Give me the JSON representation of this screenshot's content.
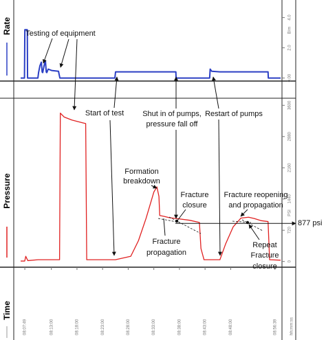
{
  "chart_data": [
    {
      "type": "line",
      "axis_label": "Rate",
      "y_unit": "B/m",
      "color": "#2b3fc4",
      "xlim": [
        7,
        57.75
      ],
      "ylim": [
        -0.2,
        4.8
      ],
      "yticks": [
        {
          "value": 0,
          "label": "0.00"
        },
        {
          "value": 2,
          "label": "2.0"
        },
        {
          "value": 4,
          "label": "4.0"
        }
      ],
      "x": [
        7.0,
        7.75,
        7.82,
        8.3,
        8.35,
        10.37,
        10.5,
        10.77,
        11.04,
        11.2,
        11.31,
        11.58,
        11.84,
        12.0,
        12.11,
        12.38,
        13.05,
        14.39,
        14.66,
        25.4,
        25.53,
        37.3,
        37.35,
        43.9,
        44.0,
        44.3,
        45.9,
        55.3,
        55.35,
        57.75
      ],
      "values": [
        0,
        0,
        3.2,
        3.2,
        0,
        0,
        0.36,
        0.82,
        1.05,
        0.4,
        0.36,
        0.82,
        1.14,
        0.4,
        0.36,
        0.59,
        0.5,
        0.45,
        0,
        0,
        0.41,
        0.41,
        0,
        0,
        0.59,
        0.45,
        0.41,
        0.41,
        0,
        0
      ]
    },
    {
      "type": "line",
      "axis_label": "Pressure",
      "y_unit": "PSI",
      "x_label": "Time",
      "x_unit": "hh:mm:ss",
      "color": "#e02020",
      "xlim": [
        7,
        57.75
      ],
      "ylim": [
        -100,
        3700
      ],
      "yticks": [
        0,
        720,
        1440,
        2160,
        2880,
        3600
      ],
      "xticks": [
        {
          "value": 7.817,
          "label": "08:07:49"
        },
        {
          "value": 13,
          "label": "08:13:00"
        },
        {
          "value": 18,
          "label": "08:18:00"
        },
        {
          "value": 23,
          "label": "08:23:00"
        },
        {
          "value": 28,
          "label": "08:28:00"
        },
        {
          "value": 33,
          "label": "08:33:00"
        },
        {
          "value": 38,
          "label": "08:38:00"
        },
        {
          "value": 43,
          "label": "08:43:00"
        },
        {
          "value": 48,
          "label": "08:48:00"
        },
        {
          "value": 56.65,
          "label": "08:56:39"
        }
      ],
      "x": [
        7.0,
        7.8,
        8.0,
        8.4,
        10.4,
        14.6,
        14.75,
        15.5,
        17,
        19,
        19.7,
        19.9,
        25.5,
        28.5,
        30,
        31.5,
        33,
        33.6,
        34,
        34.15,
        35,
        36,
        37.4,
        40,
        41.9,
        42.2,
        42.8,
        45.9,
        47,
        48.5,
        50,
        51.5,
        52.6,
        54,
        55.3,
        55.6,
        57.75
      ],
      "values": [
        10,
        10,
        120,
        20,
        40,
        40,
        3420,
        3330,
        3260,
        3200,
        3180,
        40,
        40,
        120,
        480,
        1000,
        1600,
        1720,
        1500,
        1060,
        1040,
        1010,
        990,
        950,
        900,
        300,
        40,
        40,
        400,
        800,
        1000,
        1020,
        990,
        940,
        920,
        40,
        30
      ],
      "reference_line": {
        "value": 877,
        "label": "877 psi"
      }
    }
  ],
  "annotations": [
    [
      "Testing of equipment"
    ],
    [
      "Start of test"
    ],
    [
      "Shut in of pumps,",
      "pressure fall off"
    ],
    [
      "Restart of pumps"
    ],
    [
      "Formation",
      "breakdown"
    ],
    [
      "Fracture",
      "closure"
    ],
    [
      "Fracture",
      "propagation"
    ],
    [
      "Fracture reopening",
      "and propagation"
    ],
    [
      "Repeat",
      "Fracture",
      "closure"
    ]
  ]
}
